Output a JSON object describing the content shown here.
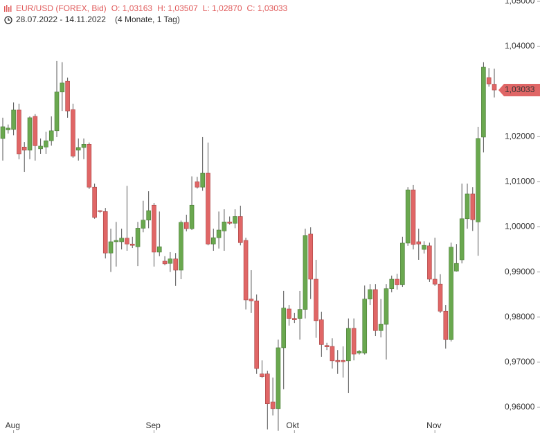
{
  "chart_data": {
    "type": "candlestick",
    "header": {
      "symbol": "EUR/USD (FOREX, Bid)",
      "open": "O: 1,03163",
      "high": "H: 1,03507",
      "low": "L: 1,02870",
      "close": "C: 1,03033",
      "range": "28.07.2022 - 14.11.2022",
      "span": "(4 Monate, 1 Tag)"
    },
    "last_price_label": "1,03033",
    "up_color": "#6aa84f",
    "down_color": "#e06666",
    "header_color": "#e05a5a",
    "categories": [
      null,
      null,
      "Aug",
      null,
      null,
      null,
      null,
      null,
      null,
      null,
      null,
      null,
      null,
      null,
      null,
      null,
      null,
      null,
      null,
      null,
      null,
      null,
      null,
      null,
      null,
      null,
      null,
      null,
      "Sep",
      null,
      null,
      null,
      null,
      null,
      null,
      null,
      null,
      null,
      null,
      null,
      null,
      null,
      null,
      null,
      null,
      null,
      null,
      null,
      null,
      null,
      null,
      null,
      null,
      null,
      "Okt",
      null,
      null,
      null,
      null,
      null,
      null,
      null,
      null,
      null,
      null,
      null,
      null,
      null,
      null,
      null,
      null,
      null,
      null,
      null,
      null,
      null,
      null,
      null,
      null,
      null,
      "Nov",
      null,
      null,
      null,
      null,
      null,
      null,
      null,
      null,
      null,
      null,
      null
    ],
    "open": [
      1.0196,
      1.0215,
      1.0216,
      1.0259,
      1.0177,
      1.017,
      1.0245,
      1.0173,
      1.0177,
      1.0191,
      1.0213,
      1.0299,
      1.0323,
      1.026,
      1.017,
      1.0176,
      1.0183,
      1.0088,
      1.0036,
      1.0034,
      0.9942,
      0.9967,
      0.9967,
      0.9975,
      0.9962,
      0.9956,
      0.9997,
      1.0015,
      1.0048,
      0.9944,
      0.9924,
      0.9919,
      0.9929,
      0.9904,
      1.001,
      0.9996,
      1.01,
      1.0088,
      1.0119,
      0.9962,
      0.9976,
      0.9991,
      1.0011,
      1.0008,
      1.0023,
      0.997,
      0.984,
      0.9836,
      0.9674,
      0.9674,
      0.9612,
      0.9597,
      0.9732,
      0.9818,
      0.9797,
      0.9797,
      0.9817,
      0.9984,
      0.9884,
      0.9794,
      0.9737,
      0.9735,
      0.9704,
      0.9704,
      0.9703,
      0.9775,
      0.972,
      0.972,
      0.984,
      0.9861,
      0.977,
      0.9784,
      0.9863,
      0.9884,
      0.9872,
      0.9964,
      1.0082,
      0.9967,
      0.995,
      0.9958,
      0.9884,
      0.9873,
      0.9813,
      0.975,
      0.9902,
      0.9927,
      1.0018,
      1.0073,
      1.0011,
      1.0199,
      1.0331,
      1.03163
    ],
    "high": [
      1.0242,
      1.0227,
      1.0276,
      1.0273,
      1.0188,
      1.0245,
      1.025,
      1.0196,
      1.0211,
      1.0245,
      1.0368,
      1.0365,
      1.0331,
      1.0273,
      1.0196,
      1.0196,
      1.0187,
      1.0096,
      1.0037,
      1.0042,
      0.9996,
      1.0011,
      0.9996,
      1.0091,
      0.9978,
      1.0011,
      1.0058,
      1.0079,
      1.0053,
      1.0034,
      0.9935,
      0.9944,
      0.9942,
      1.0014,
      1.0027,
      1.0112,
      1.0111,
      1.0199,
      1.0187,
      0.9996,
      1.0034,
      1.0039,
      1.0023,
      1.0039,
      1.0047,
      0.9976,
      0.9904,
      0.985,
      0.9704,
      0.9681,
      0.9666,
      0.975,
      0.9858,
      0.9827,
      0.9809,
      0.9858,
      0.9996,
      0.9999,
      0.9927,
      0.9812,
      0.9743,
      0.9753,
      0.9727,
      0.9735,
      0.9797,
      0.9797,
      0.9727,
      0.987,
      0.9873,
      0.9873,
      0.984,
      0.9873,
      0.9892,
      0.9896,
      0.9978,
      1.0088,
      1.0093,
      0.9996,
      0.9968,
      0.9965,
      0.9976,
      0.9895,
      0.9827,
      0.9965,
      0.9962,
      1.0096,
      1.0096,
      1.0088,
      1.0222,
      1.0365,
      1.0352,
      1.03507
    ],
    "low": [
      1.0147,
      1.0207,
      1.0203,
      1.015,
      1.0122,
      1.015,
      1.0147,
      1.0162,
      1.0162,
      1.018,
      1.0199,
      1.0257,
      1.0242,
      1.0153,
      1.0147,
      1.015,
      1.0084,
      1.0018,
      1.0031,
      0.993,
      0.99,
      0.9912,
      0.995,
      0.9947,
      0.9953,
      0.9913,
      0.9988,
      0.9997,
      0.9912,
      0.9935,
      0.9915,
      0.99,
      0.9869,
      0.9884,
      0.999,
      0.9993,
      1.0085,
      1.008,
      0.9959,
      0.9947,
      0.9952,
      0.9947,
      1.0005,
      0.9997,
      0.9959,
      0.9817,
      0.9809,
      0.9674,
      0.9665,
      0.9551,
      0.9582,
      0.9548,
      0.964,
      0.9781,
      0.9787,
      0.975,
      0.9797,
      0.984,
      0.9754,
      0.9712,
      0.9727,
      0.9686,
      0.9674,
      0.9666,
      0.9632,
      0.9704,
      0.9717,
      0.9717,
      0.9827,
      0.9758,
      0.9755,
      0.9706,
      0.9855,
      0.9861,
      0.9867,
      0.9958,
      0.995,
      0.9927,
      0.9941,
      0.9878,
      0.9869,
      0.9809,
      0.973,
      0.9746,
      0.9901,
      0.9919,
      0.9996,
      0.9991,
      0.9936,
      1.0165,
      1.0311,
      1.0287
    ],
    "close": [
      1.0222,
      1.0219,
      1.0259,
      1.0162,
      1.017,
      1.0242,
      1.018,
      1.0179,
      1.0191,
      1.0213,
      1.0299,
      1.0319,
      1.0257,
      1.0157,
      1.0176,
      1.0183,
      1.0088,
      1.0021,
      1.0034,
      0.9942,
      0.9967,
      0.997,
      0.9975,
      0.9962,
      0.9959,
      0.9997,
      1.0015,
      1.0036,
      0.9944,
      0.9956,
      0.9918,
      0.9929,
      0.9904,
      1.001,
      0.9996,
      1.0048,
      1.0088,
      1.0119,
      0.9962,
      0.9976,
      0.9993,
      1.0011,
      1.0008,
      1.0023,
      0.9965,
      0.9838,
      0.9836,
      0.9686,
      0.9668,
      0.9608,
      0.9597,
      0.9732,
      0.982,
      0.9797,
      0.9794,
      0.9817,
      0.9981,
      0.9884,
      0.9792,
      0.9739,
      0.9734,
      0.9703,
      0.9701,
      0.9701,
      0.9775,
      0.9718,
      0.9724,
      0.984,
      0.9861,
      0.977,
      0.9784,
      0.9863,
      0.9884,
      0.9872,
      0.9964,
      1.0082,
      0.9961,
      0.9962,
      0.9959,
      0.9884,
      0.9873,
      0.9813,
      0.975,
      0.9955,
      0.9919,
      1.0018,
      1.0073,
      1.0016,
      1.0196,
      1.0354,
      1.0317,
      1.03033
    ],
    "ylim": [
      0.9543,
      1.0503
    ],
    "yticks": [
      {
        "value": 0.96,
        "label": "0,96000"
      },
      {
        "value": 0.97,
        "label": "0,97000"
      },
      {
        "value": 0.98,
        "label": "0,98000"
      },
      {
        "value": 0.99,
        "label": "0,99000"
      },
      {
        "value": 1.0,
        "label": "1,00000"
      },
      {
        "value": 1.01,
        "label": "1,01000"
      },
      {
        "value": 1.02,
        "label": "1,02000"
      },
      {
        "value": 1.03,
        "label": "1,03000"
      },
      {
        "value": 1.04,
        "label": "1,04000"
      },
      {
        "value": 1.05,
        "label": "1,05000"
      }
    ]
  }
}
